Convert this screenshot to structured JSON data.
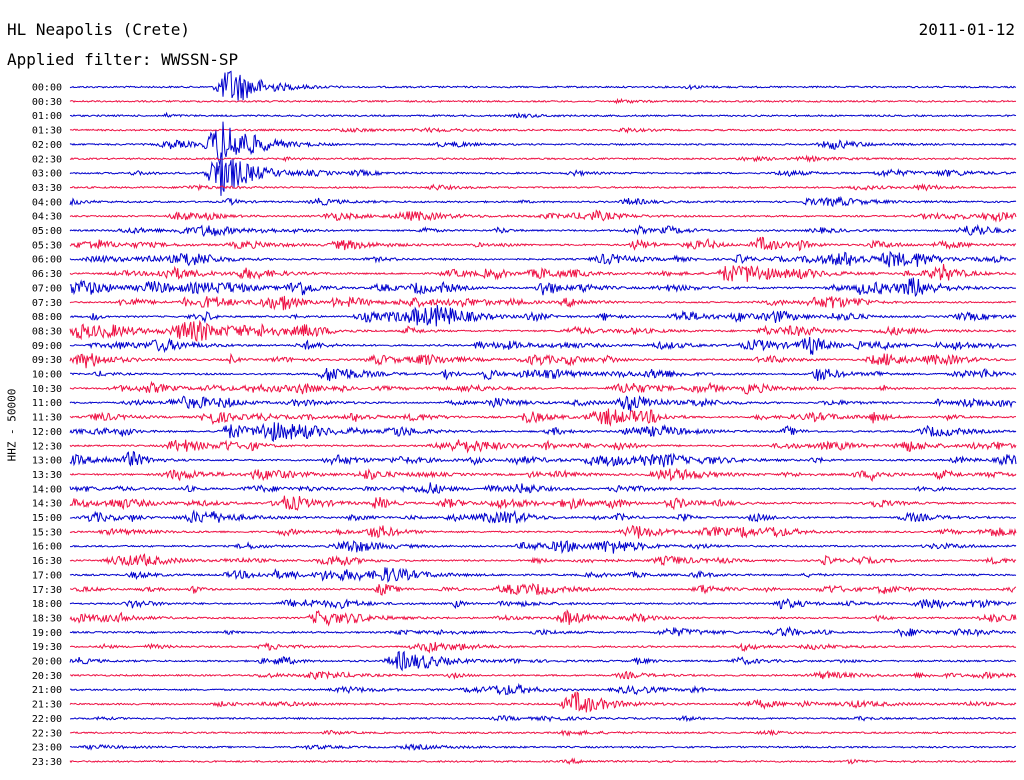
{
  "header": {
    "station": "HL Neapolis (Crete)",
    "date": "2011-01-12",
    "filter": "Applied filter: WWSSN-SP"
  },
  "chart_data": {
    "type": "line",
    "title": "HL Neapolis (Crete)",
    "subtitle": "Applied filter: WWSSN-SP",
    "ylabel": "HHZ - 50000",
    "xlabel": "",
    "row_labels": [
      "00:00",
      "00:30",
      "01:00",
      "01:30",
      "02:00",
      "02:30",
      "03:00",
      "03:30",
      "04:00",
      "04:30",
      "05:00",
      "05:30",
      "06:00",
      "06:30",
      "07:00",
      "07:30",
      "08:00",
      "08:30",
      "09:00",
      "09:30",
      "10:00",
      "10:30",
      "11:00",
      "11:30",
      "12:00",
      "12:30",
      "13:00",
      "13:30",
      "14:00",
      "14:30",
      "15:00",
      "15:30",
      "16:00",
      "16:30",
      "17:00",
      "17:30",
      "18:00",
      "18:30",
      "19:00",
      "19:30",
      "20:00",
      "20:30",
      "21:00",
      "21:30",
      "22:00",
      "22:30",
      "23:00",
      "23:30"
    ],
    "trace_colors": [
      "#0000cc",
      "#ee1144"
    ],
    "activity_by_row": [
      0.05,
      0.05,
      0.08,
      0.12,
      0.25,
      0.1,
      0.3,
      0.2,
      0.35,
      0.45,
      0.55,
      0.6,
      0.7,
      0.7,
      0.8,
      0.75,
      0.7,
      0.8,
      0.7,
      0.65,
      0.6,
      0.65,
      0.7,
      0.7,
      0.7,
      0.65,
      0.7,
      0.65,
      0.6,
      0.65,
      0.6,
      0.55,
      0.5,
      0.5,
      0.55,
      0.55,
      0.55,
      0.55,
      0.45,
      0.4,
      0.35,
      0.35,
      0.3,
      0.25,
      0.2,
      0.1,
      0.1,
      0.08
    ],
    "major_events": [
      {
        "row": 0,
        "x_fraction": 0.17,
        "amplitude": 5
      },
      {
        "row": 4,
        "x_fraction": 0.16,
        "amplitude": 6
      },
      {
        "row": 6,
        "x_fraction": 0.16,
        "amplitude": 5
      },
      {
        "row": 43,
        "x_fraction": 0.535,
        "amplitude": 3
      },
      {
        "row": 40,
        "x_fraction": 0.35,
        "amplitude": 2.5
      }
    ],
    "grid": false,
    "legend": "none"
  }
}
